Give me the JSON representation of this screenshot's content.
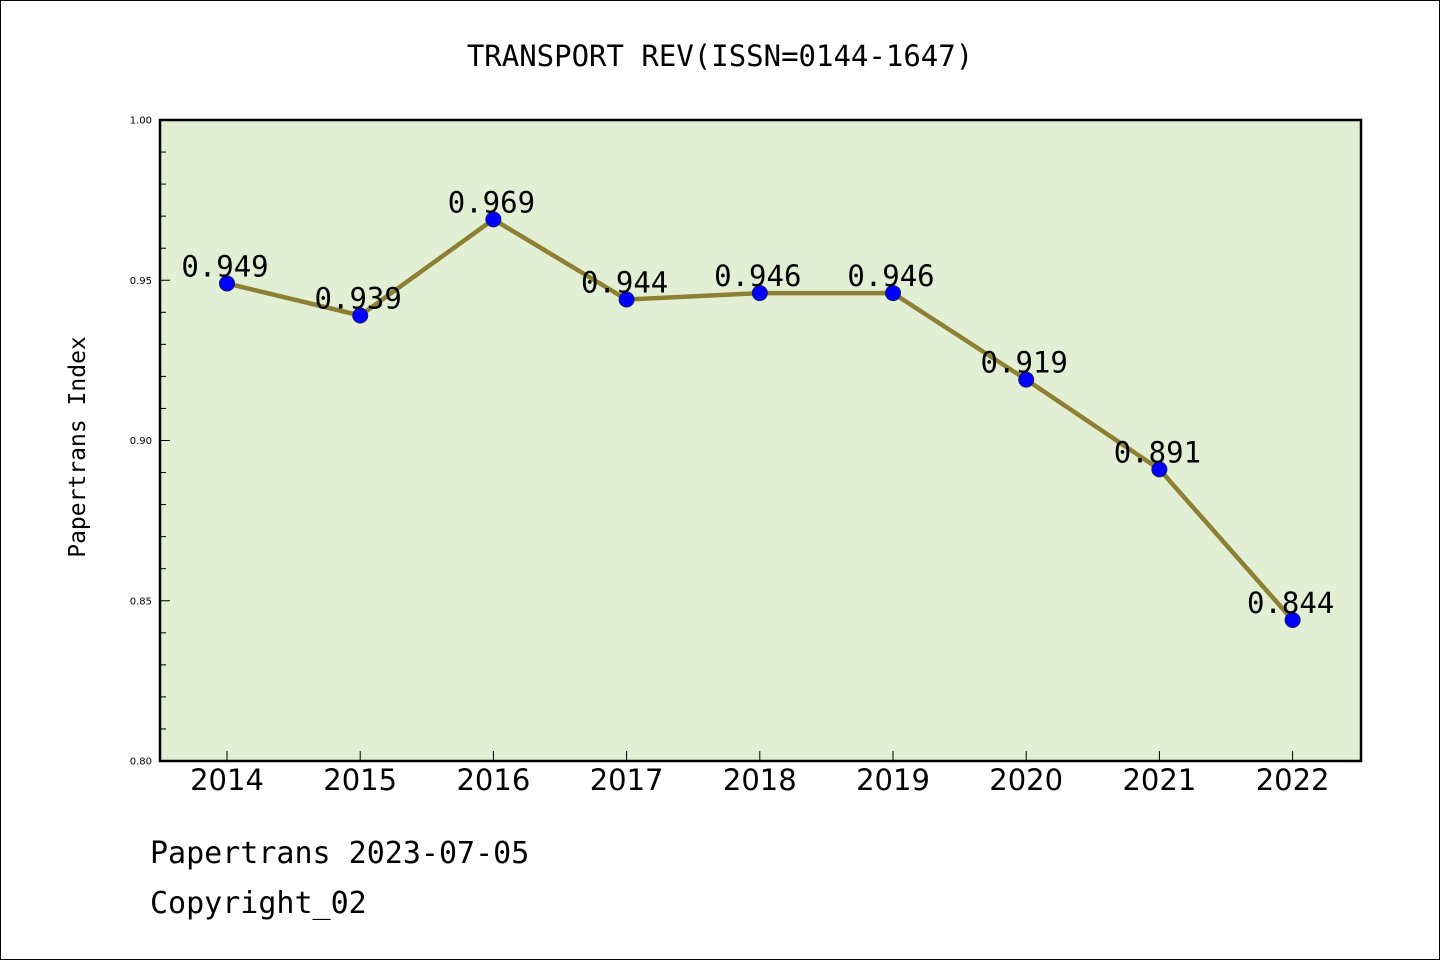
{
  "chart_data": {
    "type": "line",
    "title": "TRANSPORT REV(ISSN=0144-1647)",
    "xlabel": "",
    "ylabel": "Papertrans Index",
    "x": [
      "2014",
      "2015",
      "2016",
      "2017",
      "2018",
      "2019",
      "2020",
      "2021",
      "2022"
    ],
    "series": [
      {
        "values": [
          0.949,
          0.939,
          0.969,
          0.944,
          0.946,
          0.946,
          0.919,
          0.891,
          0.844
        ],
        "labels": [
          "0.949",
          "0.939",
          "0.969",
          "0.944",
          "0.946",
          "0.946",
          "0.919",
          "0.891",
          "0.844"
        ]
      }
    ],
    "ylim": [
      0.8,
      1.0
    ],
    "yticks": [
      "0.80",
      "0.85",
      "0.90",
      "0.95",
      "1.00"
    ],
    "grid": false,
    "colors": {
      "plot_background": "#e2efd5",
      "line": "#8c8033",
      "marker": "#0000ff"
    }
  },
  "footer": {
    "date_text": "Papertrans 2023-07-05",
    "copyright_text": "Copyright_02"
  }
}
